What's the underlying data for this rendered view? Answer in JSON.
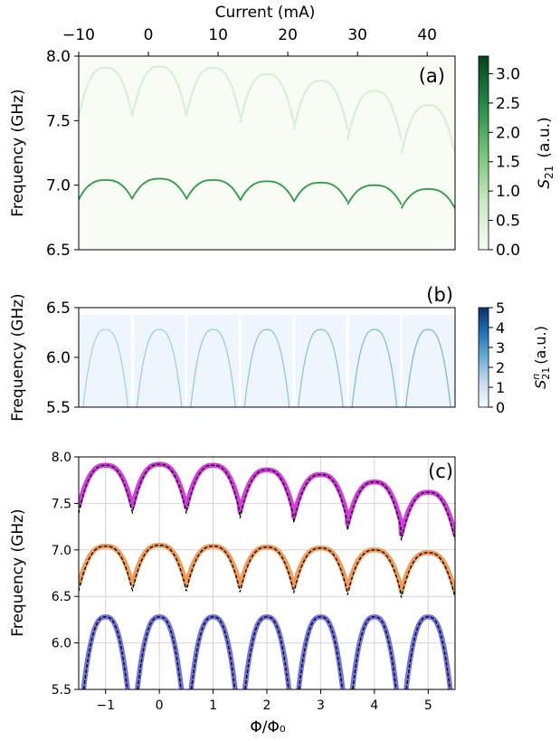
{
  "chart_data": [
    {
      "panel": "a",
      "type": "heatmap",
      "panel_label": "(a)",
      "top_xlabel": "Current (mA)",
      "top_xticks": [
        -10,
        0,
        10,
        20,
        30,
        40
      ],
      "top_xlim": [
        -10,
        44
      ],
      "ylabel": "Frequency (GHz)",
      "ylim": [
        6.5,
        8.0
      ],
      "yticks": [
        "6.5",
        "7.0",
        "7.5",
        "8.0"
      ],
      "colorbar": {
        "label_main": "S",
        "label_sub": "21",
        "label_unit": "(a.u.)",
        "range": [
          0,
          3.3
        ],
        "ticks": [
          "0.0",
          "0.5",
          "1.0",
          "1.5",
          "2.0",
          "2.5",
          "3.0"
        ],
        "colormap": "Greens",
        "color_low": "#f7fcf5",
        "color_high": "#00441b"
      },
      "colors": {
        "mode_line": "#2e9a48",
        "faint": "#d5efcf"
      },
      "flux_periods": 7,
      "upper_branch_peaks_GHz": [
        7.91,
        7.92,
        7.91,
        7.86,
        7.81,
        7.73,
        7.62
      ],
      "lower_branch_peaks_GHz": [
        7.04,
        7.05,
        7.04,
        7.03,
        7.02,
        7.0,
        6.97
      ]
    },
    {
      "panel": "b",
      "type": "heatmap",
      "panel_label": "(b)",
      "ylabel": "Frequency (GHz)",
      "ylim": [
        5.5,
        6.5
      ],
      "yticks": [
        "5.5",
        "6.0",
        "6.5"
      ],
      "colorbar": {
        "label_main": "S",
        "label_sub": "21",
        "label_sup": "n",
        "label_unit": "(a.u.)",
        "range": [
          0,
          5
        ],
        "ticks": [
          "0",
          "1",
          "2",
          "3",
          "4",
          "5"
        ],
        "colormap": "Blues",
        "color_low": "#f7fbff",
        "color_high": "#08306b"
      },
      "colors": {
        "mode_line": "#6aaed6",
        "background": "#eef5fc"
      },
      "arch_peak_GHz": 6.28,
      "arch_centers_phi": [
        -1,
        0,
        1,
        2,
        3,
        4,
        5
      ]
    },
    {
      "panel": "c",
      "type": "line",
      "panel_label": "(c)",
      "xlabel": "Φ/Φ₀",
      "ylabel": "Frequency (GHz)",
      "xlim": [
        -1.5,
        5.5
      ],
      "ylim": [
        5.5,
        8.0
      ],
      "xticks": [
        -1,
        0,
        1,
        2,
        3,
        4,
        5
      ],
      "yticks": [
        "5.5",
        "6.0",
        "6.5",
        "7.0",
        "7.5",
        "8.0"
      ],
      "grid": true,
      "series": [
        {
          "color": "#d63be0",
          "fit_color": "#000000",
          "peaks": [
            7.91,
            7.92,
            7.91,
            7.86,
            7.81,
            7.73,
            7.62
          ],
          "dip_depth": 0.45
        },
        {
          "color": "#f39a55",
          "fit_color": "#000000",
          "peaks": [
            7.04,
            7.05,
            7.04,
            7.03,
            7.02,
            7.0,
            6.97
          ],
          "dip_depth": 0.42
        },
        {
          "color": "#7272e0",
          "fit_color": "#000000",
          "arch_peak": 6.28,
          "arch_bottom": 5.5
        }
      ]
    }
  ]
}
